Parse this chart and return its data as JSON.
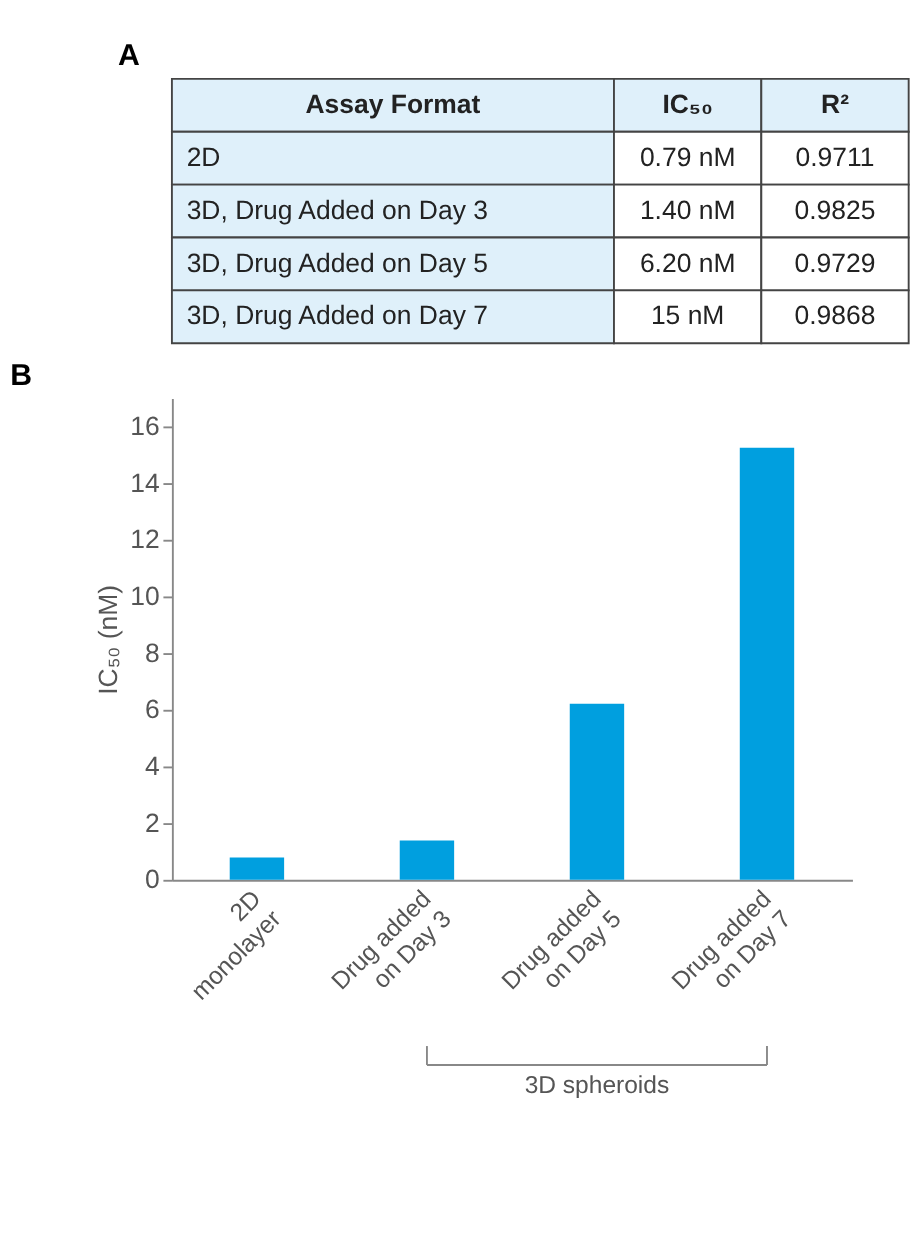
{
  "chart_data": [
    {
      "type": "other",
      "title": "A",
      "annotations": [
        "Assay Format",
        "IC₅₀",
        "R²",
        "2D",
        "0.79 nM",
        "0.9711",
        "3D, Drug Added on Day 3",
        "1.40 nM",
        "0.9825",
        "3D, Drug Added on Day 5",
        "6.20 nM",
        "0.9729",
        "3D, Drug Added on Day 7",
        "15 nM",
        "0.9868"
      ]
    },
    {
      "type": "bar",
      "title": "B",
      "categories": [
        "2D monolayer",
        "Drug added on Day 3",
        "Drug added on Day 5",
        "Drug added on Day 7"
      ],
      "values": [
        0.79,
        1.39,
        6.21,
        15.25
      ],
      "color": "#009fdf",
      "ylabel": "IC₅₀ (nM)",
      "ylim": [
        0,
        17
      ],
      "yticks": [
        0,
        2,
        4,
        6,
        8,
        10,
        12,
        14,
        16
      ],
      "annotations": [
        "3D spheroids"
      ]
    }
  ]
}
